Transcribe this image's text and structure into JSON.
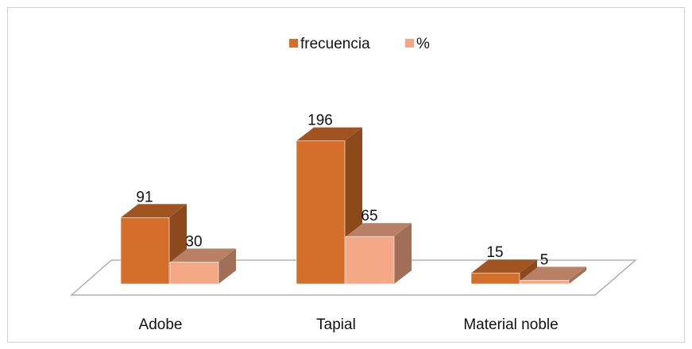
{
  "chart_data": {
    "type": "bar",
    "categories": [
      "Adobe",
      "Tapial",
      "Material noble"
    ],
    "series": [
      {
        "name": "frecuencia",
        "color": "#d46e2a",
        "values": [
          91,
          196,
          15
        ]
      },
      {
        "name": "%",
        "color": "#f4a886",
        "values": [
          30,
          65,
          5
        ]
      }
    ],
    "legend": "top"
  }
}
